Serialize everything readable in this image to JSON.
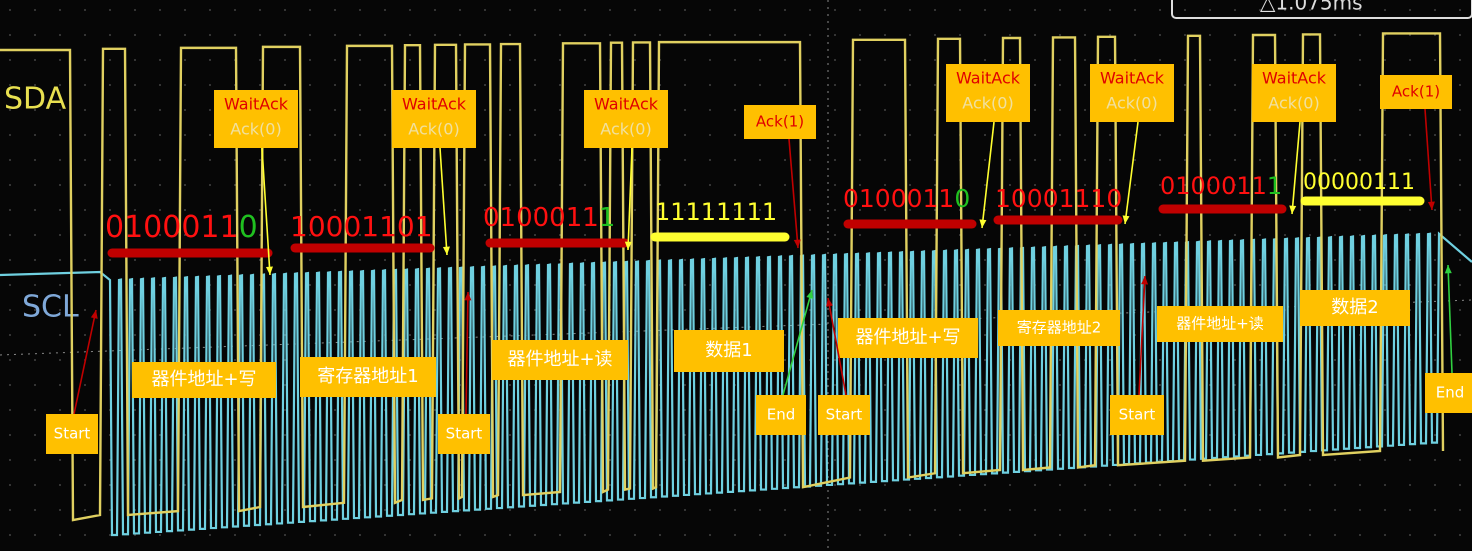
{
  "signals": {
    "sda": "SDA",
    "scl": "SCL"
  },
  "readout": "△1.075ms",
  "bit_groups": [
    {
      "bits": "0100011",
      "last": "0"
    },
    {
      "bits": "10001101"
    },
    {
      "bits": "0100011",
      "last": "1"
    },
    {
      "bits": "11111111"
    },
    {
      "bits": "0100011",
      "last": "0"
    },
    {
      "bits": "10001110"
    },
    {
      "bits": "0100011",
      "last": "1"
    },
    {
      "bits": "00000111"
    }
  ],
  "ack_boxes": [
    {
      "title": "WaitAck",
      "status": "Ack(0)"
    },
    {
      "title": "WaitAck",
      "status": "Ack(0)"
    },
    {
      "title": "WaitAck",
      "status": "Ack(0)"
    },
    {
      "title": "WaitAck",
      "status": "Ack(0)"
    },
    {
      "title": "WaitAck",
      "status": "Ack(0)"
    },
    {
      "title": "WaitAck",
      "status": "Ack(0)"
    }
  ],
  "ack1_boxes": [
    "Ack(1)",
    "Ack(1)"
  ],
  "segments": [
    "器件地址+写",
    "寄存器地址1",
    "器件地址+读",
    "数据1",
    "器件地址+写",
    "寄存器地址2",
    "器件地址+读",
    "数据2"
  ],
  "markers": [
    "Start",
    "Start",
    "End",
    "Start",
    "Start",
    "End"
  ]
}
